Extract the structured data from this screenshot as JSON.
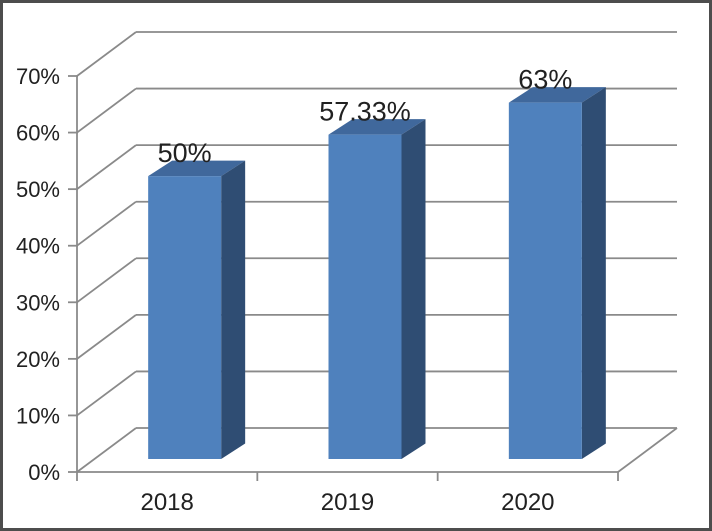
{
  "chart_data": {
    "type": "bar",
    "subtype": "3d-clustered-column",
    "title": "",
    "xlabel": "",
    "ylabel": "",
    "categories": [
      "2018",
      "2019",
      "2020"
    ],
    "values": [
      50,
      57.33,
      63
    ],
    "data_labels": [
      "50%",
      "57.33%",
      "63%"
    ],
    "ylim": [
      0,
      70
    ],
    "ytick_step": 10,
    "ytick_labels": [
      "0%",
      "10%",
      "20%",
      "30%",
      "40%",
      "50%",
      "60%",
      "70%"
    ],
    "grid": true,
    "legend": false
  },
  "colors": {
    "bar_front": "#4F81BD",
    "bar_top": "#40689C",
    "bar_side": "#2F4D73",
    "gridline": "#8A8A8A",
    "axis": "#8A8A8A",
    "text": "#212121",
    "border": "#4D4D4D",
    "background": "#FFFFFF"
  }
}
